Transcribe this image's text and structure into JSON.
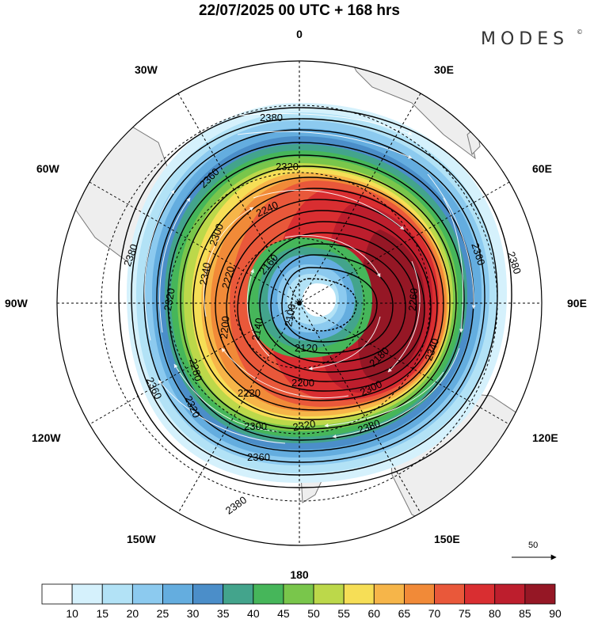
{
  "header": {
    "title": "22/07/2025  00 UTC  + 168 hrs",
    "brand": "MODES",
    "brand_mark": "©"
  },
  "map": {
    "projection": "south-polar-stereographic",
    "longitude_labels": {
      "top": "0",
      "bottom": "180",
      "left": "90W",
      "right": "90E",
      "upper_left_1": "30W",
      "upper_left_2": "60W",
      "upper_right_1": "30E",
      "upper_right_2": "60E",
      "lower_left_1": "120W",
      "lower_left_2": "150W",
      "lower_right_1": "120E",
      "lower_right_2": "150E"
    },
    "contour_labels": {
      "c2380_top": "2380",
      "c2380_left": "2380",
      "c2380_right": "2380",
      "c2380_bottom": "2380",
      "c2380_lowerleft": "2380",
      "c2360_left": "2360",
      "c2360_right": "2360",
      "c2360_bottom": "2360",
      "c2360_lowerleft": "2360",
      "c2340_right": "2340",
      "c2340_upper": "2340",
      "c2320_top": "2320",
      "c2320_left": "2320",
      "c2320_bottom": "2320",
      "c2320_lowerleft": "2320",
      "c2300_left": "2300",
      "c2300_bottom": "2300",
      "c2300_lower": "2300",
      "c2280_left": "2280",
      "c2260_right": "2260",
      "c2240_top": "2240",
      "c2220_left": "2220",
      "c2220_lower": "2220",
      "c2200_left": "2200",
      "c2200_lower": "2200",
      "c2180_right": "2180",
      "c2160_top": "2160",
      "c2140_left": "2140",
      "c2120_bottom": "2120",
      "c2100_center": "2100"
    },
    "vector_reference": "50"
  },
  "colorbar": {
    "ticks": [
      "10",
      "15",
      "20",
      "25",
      "30",
      "35",
      "40",
      "45",
      "50",
      "55",
      "60",
      "65",
      "70",
      "75",
      "80",
      "85",
      "90"
    ],
    "colors": [
      "#ffffff",
      "#d5f1fc",
      "#b2e2f6",
      "#8ccaef",
      "#64addf",
      "#4b8ec9",
      "#43a48c",
      "#46b65a",
      "#79c64b",
      "#bcd84a",
      "#f6de56",
      "#f6b549",
      "#f18a38",
      "#e9583a",
      "#d92e31",
      "#bd1e2d",
      "#951725"
    ]
  },
  "chart_data": {
    "type": "polar-stereographic wind speed and geopotential height map",
    "title": "22/07/2025  00 UTC  + 168 hrs",
    "variable_shading": "wind speed (colorbar 10–90)",
    "variable_contours": "geopotential height",
    "contour_levels": [
      2100,
      2120,
      2140,
      2160,
      2180,
      2200,
      2220,
      2240,
      2260,
      2280,
      2300,
      2320,
      2340,
      2360,
      2380
    ],
    "colorbar_levels": [
      10,
      15,
      20,
      25,
      30,
      35,
      40,
      45,
      50,
      55,
      60,
      65,
      70,
      75,
      80,
      85,
      90
    ],
    "max_wind_sector": "60E–120E",
    "vector_reference_speed": 50
  }
}
